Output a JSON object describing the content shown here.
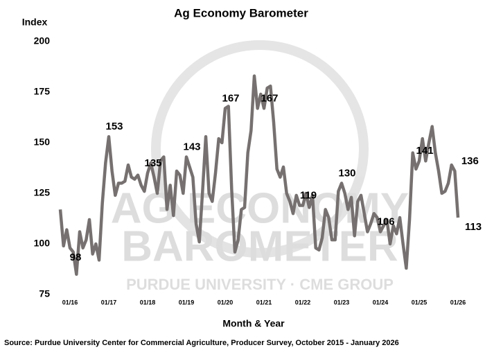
{
  "chart_data": {
    "type": "line",
    "title": "Ag Economy Barometer",
    "y_label": "Index",
    "x_label": "Month & Year",
    "source": "Source: Purdue University Center for Commercial Agriculture, Producer Survey, October 2015 - January 2026",
    "watermark": [
      "AG ECONOMY",
      "BAROMETER",
      "PURDUE UNIVERSITY · CME GROUP"
    ],
    "categories": [
      null,
      null,
      null,
      "01/16",
      null,
      null,
      null,
      null,
      null,
      null,
      null,
      null,
      null,
      null,
      null,
      "01/17",
      null,
      null,
      null,
      null,
      null,
      null,
      null,
      null,
      null,
      null,
      null,
      "01/18",
      null,
      null,
      null,
      null,
      null,
      null,
      null,
      null,
      null,
      null,
      null,
      "01/19",
      null,
      null,
      null,
      null,
      null,
      null,
      null,
      null,
      null,
      null,
      null,
      "01/20",
      null,
      null,
      null,
      null,
      null,
      null,
      null,
      null,
      null,
      null,
      null,
      "01/21",
      null,
      null,
      null,
      null,
      null,
      null,
      null,
      null,
      null,
      null,
      null,
      "01/22",
      null,
      null,
      null,
      null,
      null,
      null,
      null,
      null,
      null,
      null,
      null,
      "01/23",
      null,
      null,
      null,
      null,
      null,
      null,
      null,
      null,
      null,
      null,
      null,
      "01/24",
      null,
      null,
      null,
      null,
      null,
      null,
      null,
      null,
      null,
      null,
      null,
      "01/25",
      null,
      null,
      null,
      null,
      null,
      null,
      null,
      null,
      null,
      null,
      null,
      "01/26"
    ],
    "series": [
      {
        "color": "#767170",
        "values": [
          117,
          99,
          107,
          98,
          96,
          85,
          106,
          98,
          102,
          112,
          95,
          100,
          92,
          120,
          140,
          153,
          136,
          124,
          130,
          130,
          131,
          139,
          133,
          132,
          134,
          129,
          126,
          135,
          140,
          133,
          125,
          141,
          143,
          117,
          129,
          114,
          136,
          134,
          125,
          143,
          138,
          133,
          110,
          101,
          126,
          153,
          125,
          121,
          135,
          152,
          150,
          167,
          168,
          127,
          96,
          102,
          117,
          118,
          145,
          156,
          183,
          167,
          174,
          167,
          177,
          178,
          160,
          137,
          133,
          138,
          125,
          121,
          115,
          124,
          119,
          119,
          125,
          118,
          124,
          98,
          97,
          103,
          117,
          113,
          102,
          102,
          126,
          130,
          125,
          117,
          123,
          104,
          121,
          124,
          115,
          106,
          110,
          115,
          113,
          106,
          109,
          112,
          100,
          109,
          105,
          113,
          100,
          88,
          112,
          145,
          137,
          141,
          152,
          141,
          150,
          158,
          145,
          136,
          125,
          126,
          130,
          139,
          136,
          113
        ],
        "value_labels": [
          null,
          null,
          null,
          98,
          null,
          null,
          null,
          null,
          null,
          null,
          null,
          null,
          null,
          null,
          null,
          153,
          null,
          null,
          null,
          null,
          null,
          null,
          null,
          null,
          null,
          null,
          null,
          135,
          null,
          null,
          null,
          null,
          null,
          null,
          null,
          null,
          null,
          null,
          null,
          143,
          null,
          null,
          null,
          null,
          null,
          null,
          null,
          null,
          null,
          null,
          null,
          167,
          null,
          null,
          null,
          null,
          null,
          null,
          null,
          null,
          null,
          null,
          null,
          167,
          null,
          null,
          null,
          null,
          null,
          null,
          null,
          null,
          null,
          null,
          null,
          119,
          null,
          null,
          null,
          null,
          null,
          null,
          null,
          null,
          null,
          null,
          null,
          130,
          null,
          null,
          null,
          null,
          null,
          null,
          null,
          null,
          null,
          null,
          null,
          106,
          null,
          null,
          null,
          null,
          null,
          null,
          null,
          null,
          null,
          null,
          null,
          141,
          null,
          null,
          null,
          null,
          null,
          null,
          null,
          null,
          null,
          null,
          136,
          113
        ]
      }
    ],
    "ylim": [
      75,
      200
    ],
    "yticks": [
      75,
      100,
      125,
      150,
      175,
      200
    ]
  }
}
